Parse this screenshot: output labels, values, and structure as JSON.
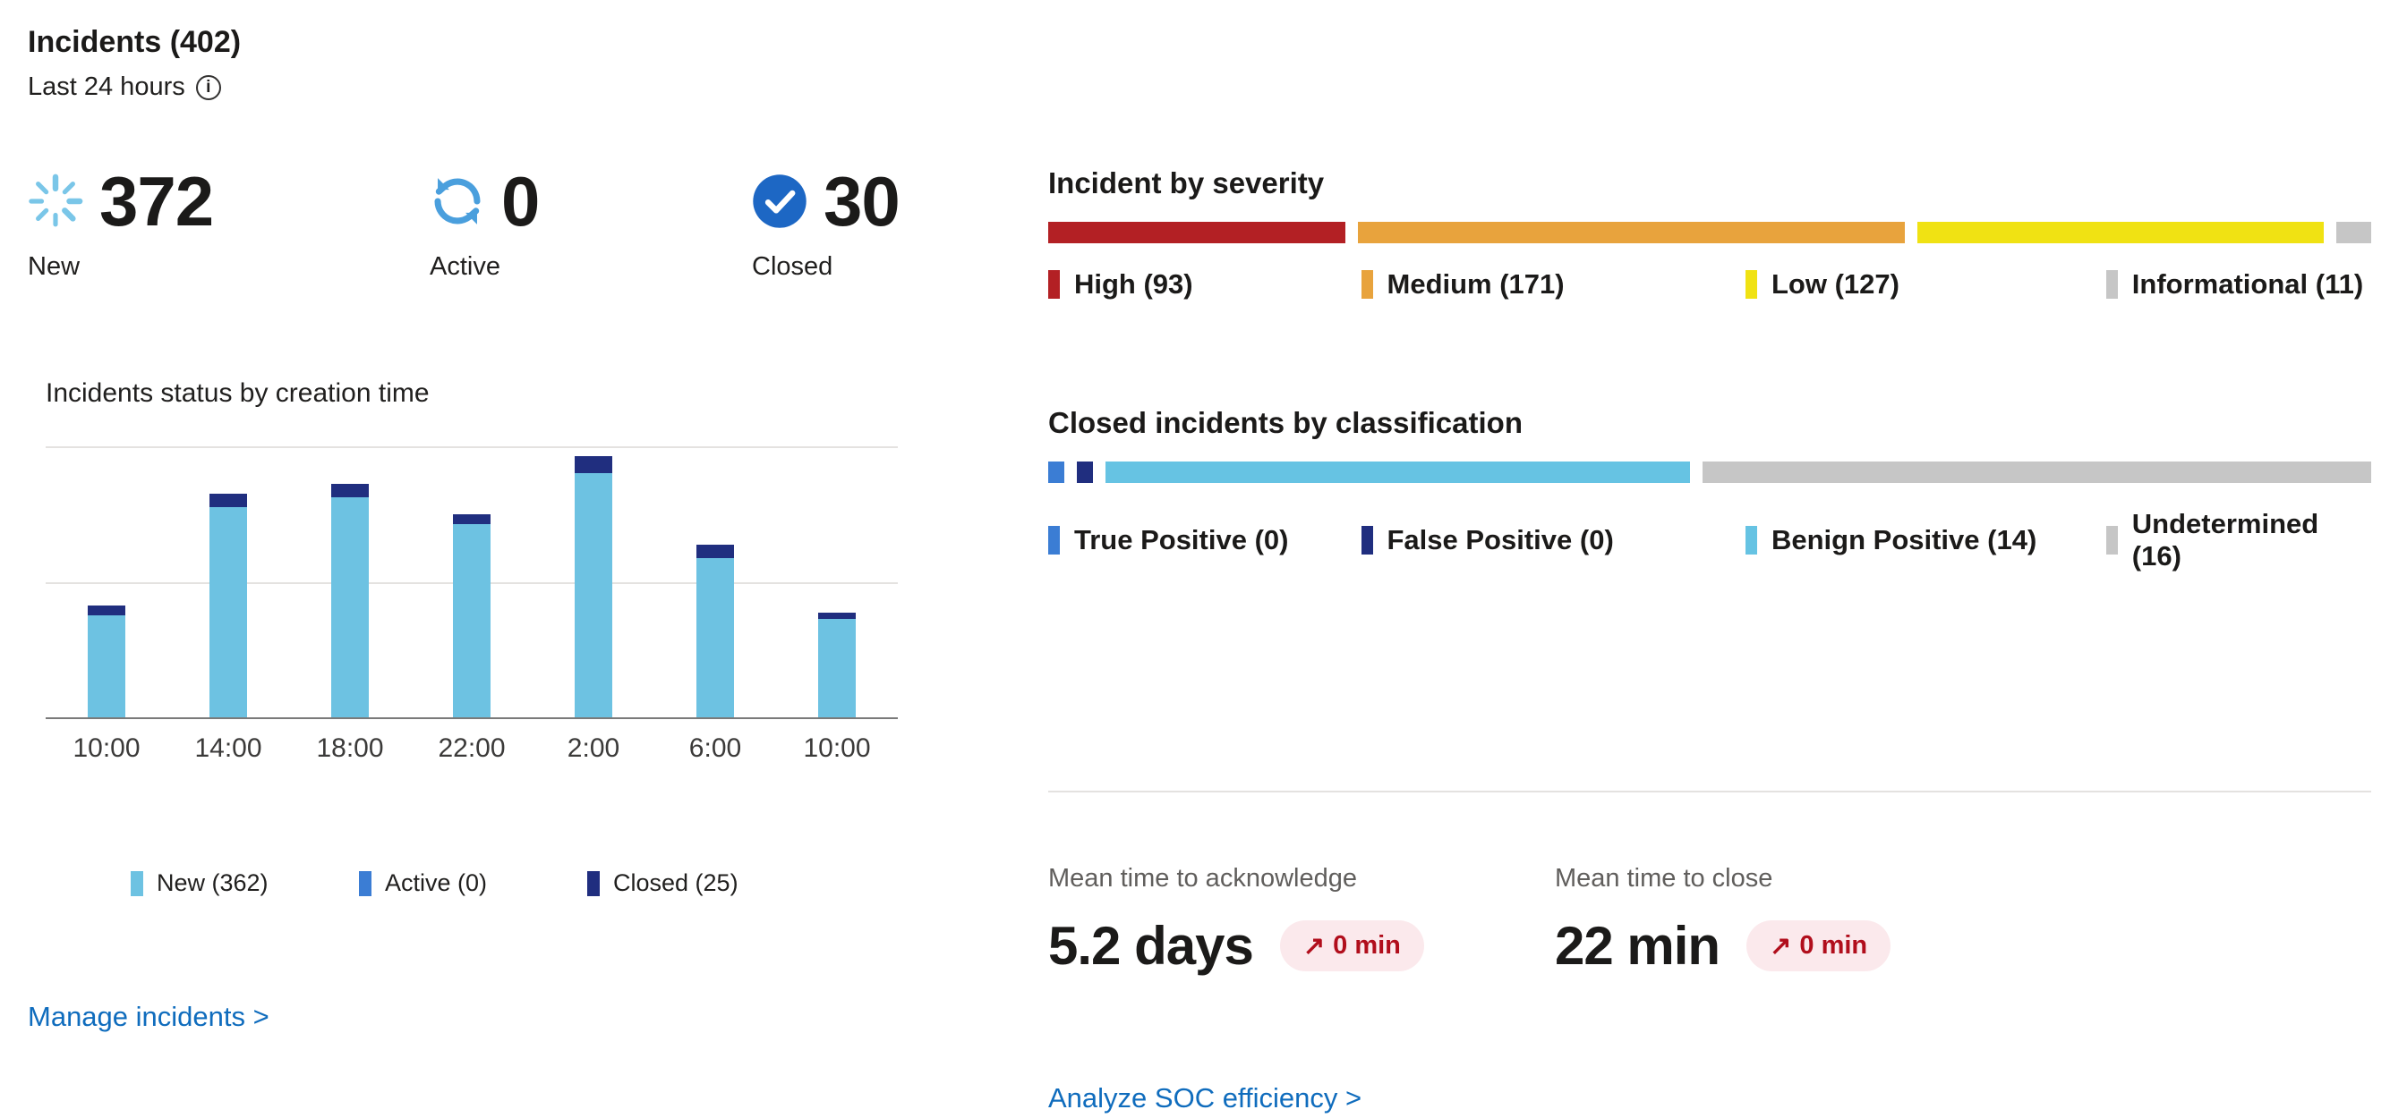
{
  "icons": {
    "new": "sunburst-spinner-icon",
    "active": "sync-arrows-icon",
    "closed": "check-circle-icon",
    "info": "i",
    "trend_up": "↗"
  },
  "header": {
    "title": "Incidents (402)",
    "subtitle": "Last 24 hours"
  },
  "stats": [
    {
      "label": "New",
      "value": "372"
    },
    {
      "label": "Active",
      "value": "0"
    },
    {
      "label": "Closed",
      "value": "30"
    }
  ],
  "severity": {
    "title": "Incident by severity",
    "segments": [
      {
        "label": "High (93)",
        "value": 93,
        "color": "#b32024"
      },
      {
        "label": "Medium (171)",
        "value": 171,
        "color": "#e8a33d"
      },
      {
        "label": "Low (127)",
        "value": 127,
        "color": "#f0e213"
      },
      {
        "label": "Informational (11)",
        "value": 11,
        "color": "#c6c6c6"
      }
    ]
  },
  "classification": {
    "title": "Closed incidents by classification",
    "segments": [
      {
        "label": "True Positive (0)",
        "value": 0,
        "color": "#3b7dd4"
      },
      {
        "label": "False Positive (0)",
        "value": 0,
        "color": "#202e7f"
      },
      {
        "label": "Benign Positive (14)",
        "value": 14,
        "color": "#66c3e3"
      },
      {
        "label": "Undetermined (16)",
        "value": 16,
        "color": "#c6c6c6"
      }
    ]
  },
  "metrics": [
    {
      "label": "Mean time to acknowledge",
      "value": "5.2 days",
      "delta": "0 min"
    },
    {
      "label": "Mean time to close",
      "value": "22 min",
      "delta": "0 min"
    }
  ],
  "links": {
    "manage": "Manage incidents >",
    "analyze": "Analyze SOC efficiency >"
  },
  "chart_data": {
    "type": "bar",
    "stacked": true,
    "title": "Incidents status by creation time",
    "categories": [
      "10:00",
      "14:00",
      "18:00",
      "22:00",
      "2:00",
      "6:00",
      "10:00"
    ],
    "series": [
      {
        "name": "New (362)",
        "color": "#6dc2e2",
        "values": [
          30,
          62,
          65,
          57,
          72,
          47,
          29
        ]
      },
      {
        "name": "Active (0)",
        "color": "#3b7dd4",
        "values": [
          0,
          0,
          0,
          0,
          0,
          0,
          0
        ]
      },
      {
        "name": "Closed (25)",
        "color": "#202e7f",
        "values": [
          3,
          4,
          4,
          3,
          5,
          4,
          2
        ]
      }
    ],
    "xlabel": "",
    "ylabel": "",
    "ylim": [
      0,
      80
    ],
    "gridlines": [
      0,
      40,
      80
    ],
    "legend_position": "bottom"
  }
}
